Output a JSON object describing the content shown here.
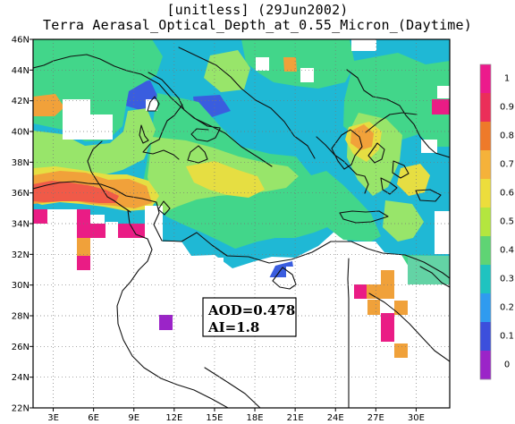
{
  "title": {
    "line1": "[unitless] (29Jun2002)",
    "line2": "Terra Aerasal_Optical_Depth_at_0.55_Micron_(Daytime)"
  },
  "map": {
    "lon_range": [
      1.5,
      32.5
    ],
    "lat_range": [
      22,
      46
    ],
    "x_ticks": [
      "3E",
      "6E",
      "9E",
      "12E",
      "15E",
      "18E",
      "21E",
      "24E",
      "27E",
      "30E"
    ],
    "x_tick_values": [
      3,
      6,
      9,
      12,
      15,
      18,
      21,
      24,
      27,
      30
    ],
    "y_ticks": [
      "46N",
      "44N",
      "42N",
      "40N",
      "38N",
      "36N",
      "34N",
      "32N",
      "30N",
      "28N",
      "26N",
      "24N",
      "22N"
    ],
    "y_tick_values": [
      46,
      44,
      42,
      40,
      38,
      36,
      34,
      32,
      30,
      28,
      26,
      24,
      22
    ],
    "grid": true
  },
  "annotation": {
    "aod_label": "AOD=0.478",
    "ai_label": "AI=1.8"
  },
  "colorbar": {
    "labels": [
      "1",
      "0.9",
      "0.8",
      "0.7",
      "0.6",
      "0.5",
      "0.4",
      "0.3",
      "0.2",
      "0.1",
      "0"
    ],
    "colors": [
      "#ec1a8c",
      "#eb2e59",
      "#ee7a2a",
      "#f5b23a",
      "#ecdd3c",
      "#b4e63f",
      "#5fd474",
      "#1fc3c0",
      "#2f9bef",
      "#3c4fdc",
      "#9b24c8"
    ]
  }
}
